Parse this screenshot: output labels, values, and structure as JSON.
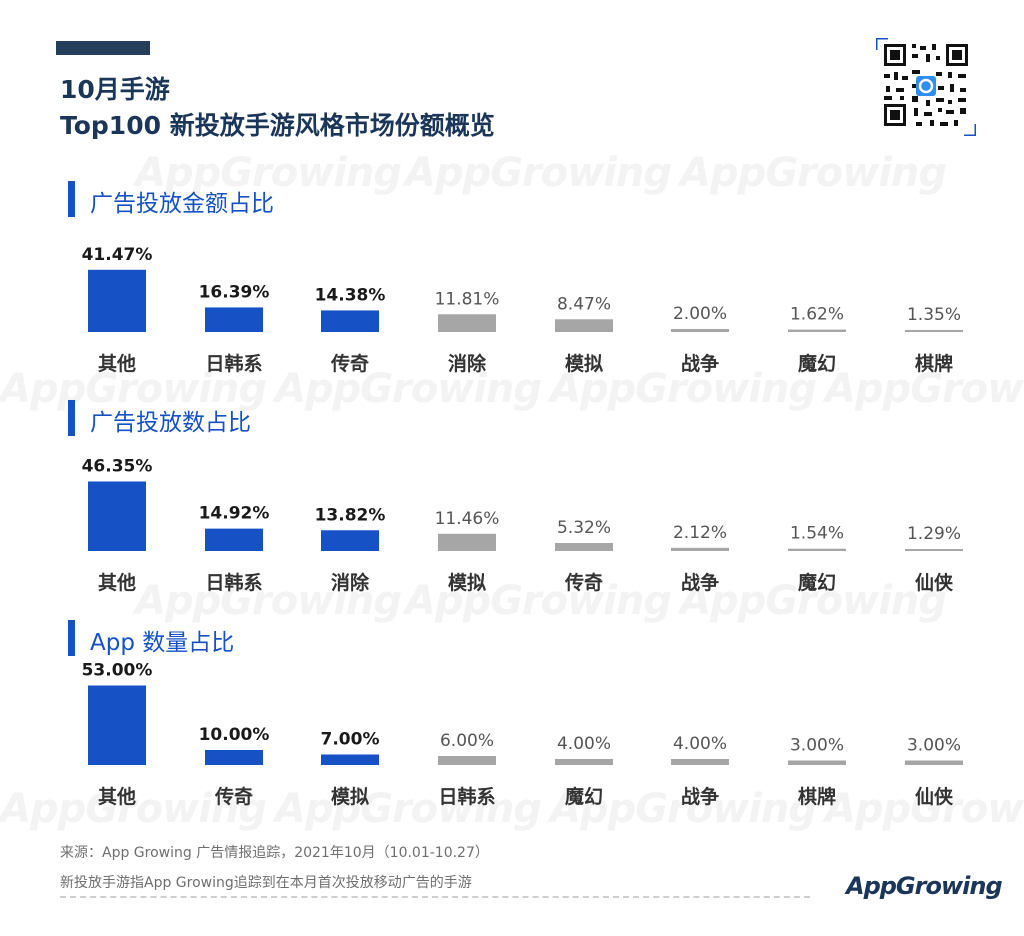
{
  "header": {
    "title_line1": "10月手游",
    "title_line2": "Top100 新投放手游风格市场份额概览"
  },
  "watermark_text": "AppGrowing",
  "colors": {
    "primary_blue": "#1652c6",
    "gray_bar": "#a6a6a6",
    "baseline_gray": "#bdbdbd",
    "title_navy": "#1b3659"
  },
  "chart_data": [
    {
      "type": "bar",
      "title": "广告投放金额占比",
      "categories": [
        "其他",
        "日韩系",
        "传奇",
        "消除",
        "模拟",
        "战争",
        "魔幻",
        "棋牌"
      ],
      "values": [
        41.47,
        16.39,
        14.38,
        11.81,
        8.47,
        2.0,
        1.62,
        1.35
      ],
      "labels": [
        "41.47%",
        "16.39%",
        "14.38%",
        "11.81%",
        "8.47%",
        "2.00%",
        "1.62%",
        "1.35%"
      ],
      "bar_colors": [
        "blue",
        "blue",
        "blue",
        "gray",
        "gray",
        "gray",
        "gray",
        "gray"
      ],
      "unit": "%"
    },
    {
      "type": "bar",
      "title": "广告投放数占比",
      "categories": [
        "其他",
        "日韩系",
        "消除",
        "模拟",
        "传奇",
        "战争",
        "魔幻",
        "仙侠"
      ],
      "values": [
        46.35,
        14.92,
        13.82,
        11.46,
        5.32,
        2.12,
        1.54,
        1.29
      ],
      "labels": [
        "46.35%",
        "14.92%",
        "13.82%",
        "11.46%",
        "5.32%",
        "2.12%",
        "1.54%",
        "1.29%"
      ],
      "bar_colors": [
        "blue",
        "blue",
        "blue",
        "gray",
        "gray",
        "gray",
        "gray",
        "gray"
      ],
      "unit": "%"
    },
    {
      "type": "bar",
      "title": "App 数量占比",
      "categories": [
        "其他",
        "传奇",
        "模拟",
        "日韩系",
        "魔幻",
        "战争",
        "棋牌",
        "仙侠"
      ],
      "values": [
        53.0,
        10.0,
        7.0,
        6.0,
        4.0,
        4.0,
        3.0,
        3.0
      ],
      "labels": [
        "53.00%",
        "10.00%",
        "7.00%",
        "6.00%",
        "4.00%",
        "4.00%",
        "3.00%",
        "3.00%"
      ],
      "bar_colors": [
        "blue",
        "blue",
        "blue",
        "gray",
        "gray",
        "gray",
        "gray",
        "gray"
      ],
      "unit": "%"
    }
  ],
  "footer": {
    "source": "来源：App  Growing 广告情报追踪，2021年10月（10.01-10.27）",
    "note": "新投放手游指App  Growing追踪到在本月首次投放移动广告的手游",
    "brand": "AppGrowing"
  }
}
